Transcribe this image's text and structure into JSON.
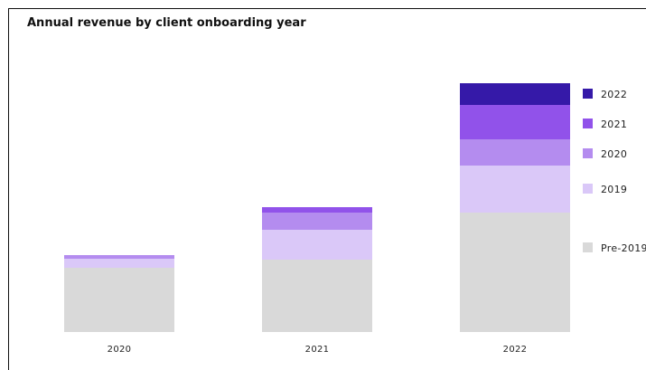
{
  "chart_data": {
    "type": "bar",
    "stacked": true,
    "title": "Annual revenue by client onboarding year",
    "categories": [
      "2020",
      "2021",
      "2022"
    ],
    "series": [
      {
        "name": "Pre-2019",
        "color": "#d9d9d9",
        "values": [
          71,
          80,
          132
        ]
      },
      {
        "name": "2019",
        "color": "#dac8f8",
        "values": [
          10,
          33,
          52
        ]
      },
      {
        "name": "2020",
        "color": "#b48cef",
        "values": [
          4,
          19,
          29
        ]
      },
      {
        "name": "2021",
        "color": "#9152ea",
        "values": [
          0,
          6,
          38
        ]
      },
      {
        "name": "2022",
        "color": "#3519a8",
        "values": [
          0,
          0,
          24
        ]
      }
    ],
    "ylim": [
      0,
      276
    ],
    "legend_position": "right",
    "grid": false
  }
}
